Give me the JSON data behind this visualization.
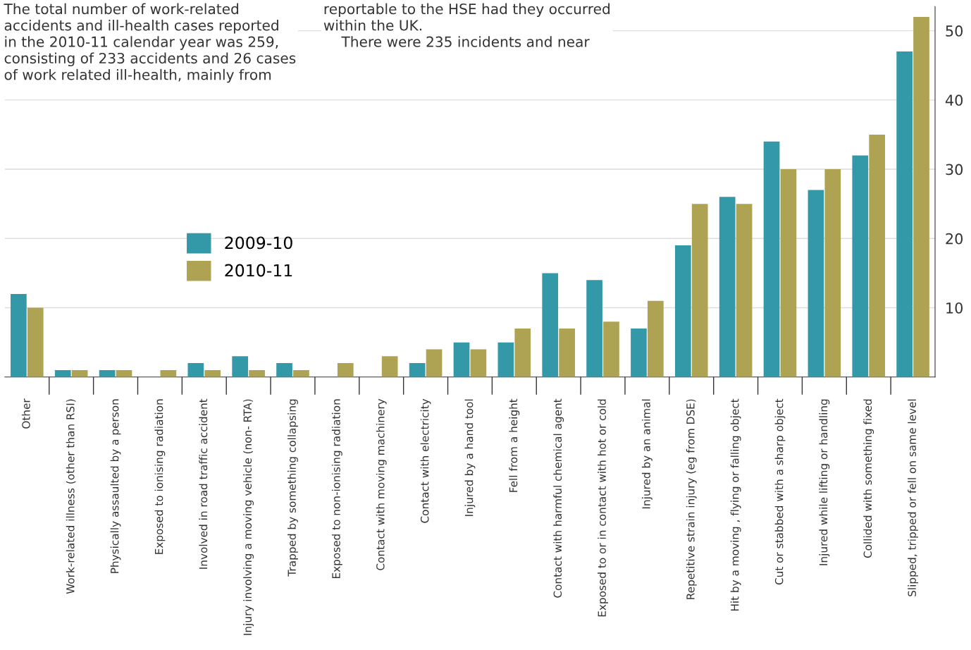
{
  "chart_data": {
    "type": "bar",
    "categories": [
      "Other",
      "Work-related illness (other than RSI)",
      "Physically assaulted by a person",
      "Exposed to ionising radiation",
      "Involved in road traffic accident",
      "Injury involving a moving vehicle (non- RTA)",
      "Trapped by something collapsing",
      "Exposed to non-ionising radiation",
      "Contact with moving machinery",
      "Contact with electricity",
      "Injured by a hand tool",
      "Fell from a height",
      "Contact with harmful chemical agent",
      "Exposed to or in contact with hot or cold",
      "Injured by an animal",
      "Repetitive strain injury (eg from DSE)",
      "Hit by a moving , flying or falling object",
      "Cut or stabbed with a sharp object",
      "Injured while lifting or handling",
      "Collided with something fixed",
      "Slipped, tripped or fell on same level"
    ],
    "series": [
      {
        "name": "2009-10",
        "color": "#3399a8",
        "values": [
          12,
          1,
          1,
          0,
          2,
          3,
          2,
          0,
          0,
          2,
          5,
          5,
          15,
          14,
          7,
          19,
          26,
          34,
          27,
          32,
          47
        ]
      },
      {
        "name": "2010-11",
        "color": "#ada352",
        "values": [
          10,
          1,
          1,
          1,
          1,
          1,
          1,
          2,
          3,
          4,
          4,
          7,
          7,
          8,
          11,
          25,
          25,
          30,
          30,
          35,
          52
        ]
      }
    ],
    "ylim": [
      0,
      53.5
    ],
    "yticks": [
      10,
      20,
      30,
      40,
      50
    ],
    "grid": "y",
    "legend": "left",
    "annotations": [
      "The total number of work-related\naccidents and ill-health cases reported\nin the 2010-11 calendar year was 259,\nconsisting of 233 accidents and 26 cases\nof work related ill-health, mainly from",
      "reportable to the HSE had they occurred\nwithin the UK.\n    There were 235 incidents and near"
    ]
  }
}
